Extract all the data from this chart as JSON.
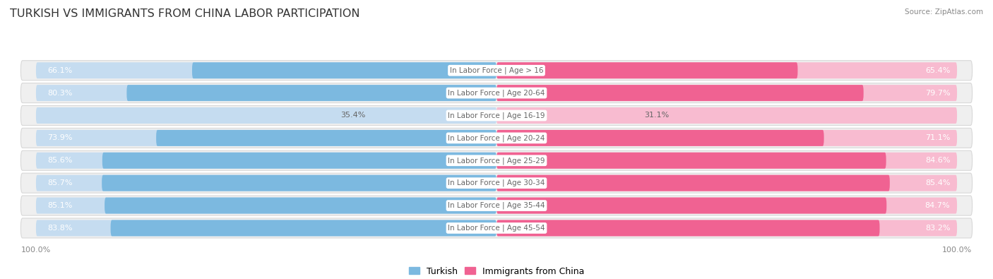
{
  "title": "TURKISH VS IMMIGRANTS FROM CHINA LABOR PARTICIPATION",
  "source": "Source: ZipAtlas.com",
  "categories": [
    "In Labor Force | Age > 16",
    "In Labor Force | Age 20-64",
    "In Labor Force | Age 16-19",
    "In Labor Force | Age 20-24",
    "In Labor Force | Age 25-29",
    "In Labor Force | Age 30-34",
    "In Labor Force | Age 35-44",
    "In Labor Force | Age 45-54"
  ],
  "turkish_values": [
    66.1,
    80.3,
    35.4,
    73.9,
    85.6,
    85.7,
    85.1,
    83.8
  ],
  "china_values": [
    65.4,
    79.7,
    31.1,
    71.1,
    84.6,
    85.4,
    84.7,
    83.2
  ],
  "turkish_color": "#7CB9E0",
  "turkish_color_light": "#C5DCF0",
  "china_color": "#F06292",
  "china_color_light": "#F8BBD0",
  "row_bg_color": "#EFEFEF",
  "row_border_color": "#D8D8D8",
  "text_color_dark": "#666666",
  "text_color_white": "#FFFFFF",
  "legend_turkish": "Turkish",
  "legend_china": "Immigrants from China",
  "max_value": 100.0,
  "title_fontsize": 11.5,
  "label_fontsize": 7.5,
  "value_fontsize": 8,
  "axis_label_fontsize": 8,
  "legend_fontsize": 9
}
